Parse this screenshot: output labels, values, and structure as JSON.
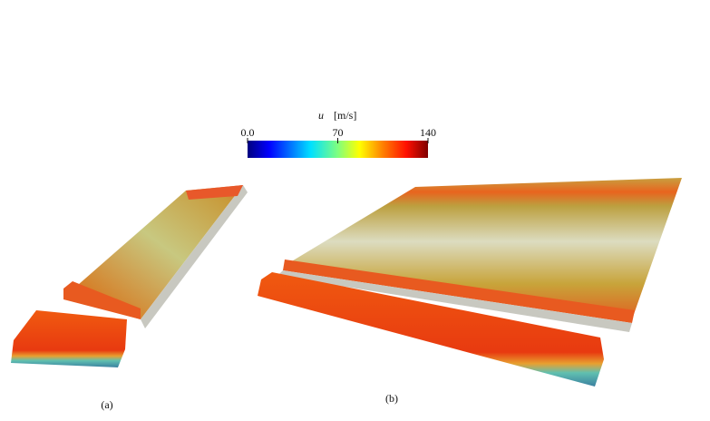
{
  "colorbar": {
    "symbol": "u",
    "unit": "[m/s]",
    "range": [
      0,
      140
    ],
    "ticks": [
      {
        "value": 0,
        "label": "0.0"
      },
      70,
      140
    ]
  },
  "panels": [
    {
      "caption": "(a)"
    },
    {
      "caption": "(b)"
    }
  ]
}
